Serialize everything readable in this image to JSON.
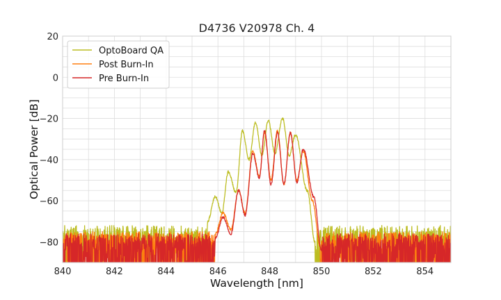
{
  "chart_data": {
    "type": "line",
    "title": "D4736 V20978 Ch. 4",
    "xlabel": "Wavelength [nm]",
    "ylabel": "Optical Power [dB]",
    "xlim": [
      840,
      855
    ],
    "ylim": [
      -90,
      20
    ],
    "x_ticks": [
      840,
      842,
      844,
      846,
      848,
      850,
      852,
      854
    ],
    "y_ticks": [
      20,
      0,
      -20,
      -40,
      -60,
      -80
    ],
    "x_tick_labels": [
      "840",
      "842",
      "844",
      "846",
      "848",
      "850",
      "852",
      "854"
    ],
    "y_tick_labels": [
      "20",
      "0",
      "−20",
      "−40",
      "−60",
      "−80"
    ],
    "grid": true,
    "legend_position": "top-left",
    "noise_floor": {
      "OptoBoard QA": -76,
      "Post Burn-In": -79,
      "Pre Burn-In": -80
    },
    "series": [
      {
        "name": "OptoBoard QA",
        "color": "#bcbd22",
        "peaks": [
          {
            "x": 845.9,
            "y": -58
          },
          {
            "x": 846.4,
            "y": -46
          },
          {
            "x": 846.95,
            "y": -26
          },
          {
            "x": 847.45,
            "y": -22
          },
          {
            "x": 847.95,
            "y": -21
          },
          {
            "x": 848.5,
            "y": -20
          },
          {
            "x": 849.0,
            "y": -28
          }
        ],
        "nulls": [
          {
            "x": 846.15,
            "y": -66
          },
          {
            "x": 846.7,
            "y": -56
          },
          {
            "x": 847.2,
            "y": -40
          },
          {
            "x": 847.7,
            "y": -38
          },
          {
            "x": 848.2,
            "y": -37
          },
          {
            "x": 848.75,
            "y": -38
          }
        ],
        "edges": [
          {
            "x": 845.6,
            "y": -70
          },
          {
            "x": 849.45,
            "y": -55
          },
          {
            "x": 849.75,
            "y": -80
          }
        ]
      },
      {
        "name": "Post Burn-In",
        "color": "#ff7f0e",
        "peaks": [
          {
            "x": 846.2,
            "y": -66
          },
          {
            "x": 846.8,
            "y": -55
          },
          {
            "x": 847.35,
            "y": -36
          },
          {
            "x": 847.8,
            "y": -27
          },
          {
            "x": 848.3,
            "y": -26
          },
          {
            "x": 848.8,
            "y": -27
          },
          {
            "x": 849.3,
            "y": -36
          }
        ],
        "nulls": [
          {
            "x": 846.5,
            "y": -74
          },
          {
            "x": 847.05,
            "y": -66
          },
          {
            "x": 847.6,
            "y": -48
          },
          {
            "x": 848.05,
            "y": -50
          },
          {
            "x": 848.55,
            "y": -52
          },
          {
            "x": 849.05,
            "y": -50
          }
        ],
        "edges": [
          {
            "x": 845.9,
            "y": -76
          },
          {
            "x": 849.65,
            "y": -60
          },
          {
            "x": 849.95,
            "y": -82
          }
        ]
      },
      {
        "name": "Pre Burn-In",
        "color": "#d62728",
        "peaks": [
          {
            "x": 846.2,
            "y": -68
          },
          {
            "x": 846.8,
            "y": -55
          },
          {
            "x": 847.35,
            "y": -37
          },
          {
            "x": 847.8,
            "y": -26
          },
          {
            "x": 848.3,
            "y": -27
          },
          {
            "x": 848.8,
            "y": -27
          },
          {
            "x": 849.3,
            "y": -35
          }
        ],
        "nulls": [
          {
            "x": 846.5,
            "y": -76
          },
          {
            "x": 847.05,
            "y": -67
          },
          {
            "x": 847.6,
            "y": -49
          },
          {
            "x": 848.05,
            "y": -52
          },
          {
            "x": 848.55,
            "y": -52
          },
          {
            "x": 849.05,
            "y": -51
          }
        ],
        "edges": [
          {
            "x": 845.9,
            "y": -78
          },
          {
            "x": 849.7,
            "y": -58
          },
          {
            "x": 850.0,
            "y": -84
          }
        ]
      }
    ]
  }
}
